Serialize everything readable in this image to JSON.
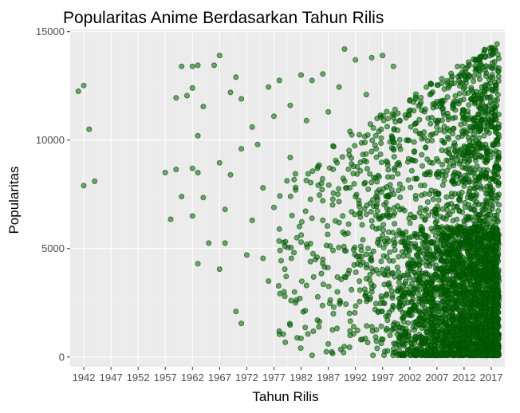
{
  "chart_data": {
    "type": "scatter",
    "title": "Popularitas Anime Berdasarkan Tahun Rilis",
    "xlabel": "Tahun Rilis",
    "ylabel": "Popularitas",
    "xlim": [
      1939.5,
      2019.5
    ],
    "ylim": [
      -450,
      15100
    ],
    "x_ticks": [
      1942,
      1947,
      1952,
      1957,
      1962,
      1967,
      1972,
      1977,
      1982,
      1987,
      1992,
      1997,
      2002,
      2007,
      2012,
      2017
    ],
    "y_ticks": [
      0,
      5000,
      10000,
      15000
    ],
    "y_tick_labels": [
      "0",
      "5000",
      "10000",
      "15000"
    ],
    "grid": true,
    "legend": "none",
    "colors": {
      "panel_bg": "#ebebeb",
      "point_fill": "#006400",
      "point_stroke": "#004d00"
    },
    "points": [
      [
        1941,
        12250
      ],
      [
        1942,
        12520
      ],
      [
        1943,
        10500
      ],
      [
        1942,
        7900
      ],
      [
        1944,
        8100
      ],
      [
        1957,
        8500
      ],
      [
        1958,
        6350
      ],
      [
        1959,
        11950
      ],
      [
        1959,
        8650
      ],
      [
        1960,
        13400
      ],
      [
        1960,
        7400
      ],
      [
        1961,
        12050
      ],
      [
        1962,
        13400
      ],
      [
        1962,
        12400
      ],
      [
        1962,
        8700
      ],
      [
        1962,
        6500
      ],
      [
        1963,
        13450
      ],
      [
        1963,
        10200
      ],
      [
        1963,
        8500
      ],
      [
        1963,
        4300
      ],
      [
        1964,
        11550
      ],
      [
        1964,
        7350
      ],
      [
        1965,
        5250
      ],
      [
        1966,
        13450
      ],
      [
        1967,
        13900
      ],
      [
        1967,
        8950
      ],
      [
        1967,
        4050
      ],
      [
        1968,
        6800
      ],
      [
        1968,
        5250
      ],
      [
        1969,
        12200
      ],
      [
        1969,
        8400
      ],
      [
        1970,
        12900
      ],
      [
        1970,
        2100
      ],
      [
        1971,
        1550
      ],
      [
        1971,
        11900
      ],
      [
        1971,
        9600
      ],
      [
        1972,
        4700
      ],
      [
        1973,
        10600
      ],
      [
        1973,
        6300
      ],
      [
        1974,
        9800
      ],
      [
        1975,
        7800
      ],
      [
        1975,
        4550
      ],
      [
        1976,
        12450
      ],
      [
        1976,
        3500
      ],
      [
        1977,
        11100
      ],
      [
        1977,
        6900
      ],
      [
        1978,
        12750
      ],
      [
        1978,
        5900
      ],
      [
        1979,
        4050
      ],
      [
        1979,
        2800
      ],
      [
        1980,
        11600
      ],
      [
        1980,
        9200
      ],
      [
        1981,
        7700
      ],
      [
        1981,
        2500
      ],
      [
        1982,
        13000
      ],
      [
        1982,
        5300
      ],
      [
        1983,
        10900
      ],
      [
        1983,
        3300
      ],
      [
        1984,
        12750
      ],
      [
        1984,
        6400
      ],
      [
        1985,
        8700
      ],
      [
        1985,
        1700
      ],
      [
        1986,
        13050
      ],
      [
        1986,
        4500
      ],
      [
        1987,
        11300
      ],
      [
        1987,
        600
      ],
      [
        1988,
        9700
      ],
      [
        1988,
        2300
      ],
      [
        1989,
        12450
      ],
      [
        1989,
        6200
      ],
      [
        1990,
        14200
      ],
      [
        1990,
        3700
      ],
      [
        1991,
        10400
      ],
      [
        1991,
        1200
      ],
      [
        1992,
        13700
      ],
      [
        1992,
        7400
      ],
      [
        1993,
        5100
      ],
      [
        1993,
        800
      ],
      [
        1994,
        12100
      ],
      [
        1994,
        9000
      ],
      [
        1995,
        13800
      ],
      [
        1995,
        3000
      ],
      [
        1996,
        11000
      ],
      [
        1996,
        400
      ],
      [
        1997,
        13900
      ],
      [
        1997,
        6500
      ],
      [
        1998,
        8300
      ],
      [
        1998,
        1900
      ],
      [
        1999,
        13400
      ],
      [
        1999,
        200
      ]
    ]
  }
}
